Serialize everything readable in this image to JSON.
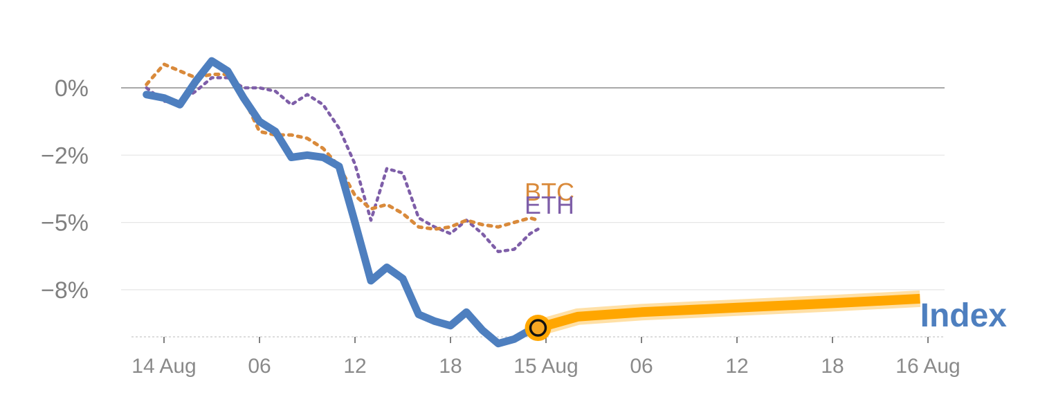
{
  "chart_data": {
    "type": "line",
    "title": "",
    "xlabel": "",
    "ylabel": "",
    "x_ticks": [
      "14 Aug",
      "06",
      "12",
      "18",
      "15 Aug",
      "06",
      "12",
      "18",
      "16 Aug"
    ],
    "x_tick_hours": [
      0,
      6,
      12,
      18,
      24,
      30,
      36,
      42,
      48
    ],
    "y_ticks": [
      "0%",
      "−2%",
      "−5%",
      "−8%"
    ],
    "y_tick_values": [
      0,
      -2,
      -5,
      -8
    ],
    "ylim": [
      -11,
      3
    ],
    "xlim": [
      -2.2,
      49.5
    ],
    "colors": {
      "index": "#4e7fbf",
      "btc": "#d98a3b",
      "eth": "#7e5ea8",
      "forecast": "#ffa600",
      "marker_fill": "#f5a623"
    },
    "series": [
      {
        "name": "Index",
        "label": "Index",
        "style": "solid",
        "x": [
          -1.1,
          0,
          1,
          2,
          3,
          4,
          5,
          6,
          7,
          8,
          9,
          10,
          11,
          12,
          13,
          14,
          15,
          16,
          17,
          18,
          19,
          20,
          21,
          22,
          23,
          23.5
        ],
        "values": [
          -0.2,
          -0.3,
          -0.5,
          0.2,
          0.8,
          0.5,
          -0.3,
          -1.0,
          -1.3,
          -2.1,
          -2.0,
          -2.1,
          -2.5,
          -5.0,
          -7.6,
          -7.0,
          -7.5,
          -9.1,
          -9.4,
          -9.6,
          -9.0,
          -9.8,
          -10.4,
          -10.2,
          -9.8,
          -9.7
        ]
      },
      {
        "name": "BTC",
        "label": "BTC",
        "style": "dotted",
        "x": [
          -1.1,
          0,
          1,
          2,
          3,
          4,
          5,
          6,
          7,
          8,
          9,
          10,
          11,
          12,
          13,
          14,
          15,
          16,
          17,
          18,
          19,
          20,
          21,
          22,
          23,
          23.5
        ],
        "values": [
          0.1,
          0.7,
          0.5,
          0.3,
          0.4,
          0.4,
          -0.3,
          -1.3,
          -1.4,
          -1.4,
          -1.5,
          -1.8,
          -2.5,
          -3.8,
          -4.4,
          -4.2,
          -4.6,
          -5.2,
          -5.3,
          -5.2,
          -4.9,
          -5.1,
          -5.2,
          -5.0,
          -4.8,
          -4.9
        ]
      },
      {
        "name": "ETH",
        "label": "ETH",
        "style": "dotted",
        "x": [
          -1.1,
          0,
          1,
          2,
          3,
          4,
          5,
          6,
          7,
          8,
          9,
          10,
          11,
          12,
          13,
          14,
          15,
          16,
          17,
          18,
          19,
          20,
          21,
          22,
          23,
          23.5
        ],
        "values": [
          0.0,
          -0.4,
          -0.4,
          -0.1,
          0.3,
          0.3,
          0.0,
          0.0,
          -0.1,
          -0.5,
          -0.2,
          -0.5,
          -1.2,
          -2.4,
          -4.9,
          -2.6,
          -2.8,
          -4.8,
          -5.2,
          -5.5,
          -4.9,
          -5.5,
          -6.3,
          -6.2,
          -5.5,
          -5.3
        ]
      },
      {
        "name": "Forecast",
        "style": "band",
        "x": [
          23.5,
          24,
          26,
          30,
          36,
          42,
          47.5
        ],
        "values": [
          -9.7,
          -9.6,
          -9.2,
          -9.0,
          -8.8,
          -8.6,
          -8.4
        ]
      }
    ],
    "marker": {
      "x": 23.5,
      "value": -9.7
    }
  }
}
